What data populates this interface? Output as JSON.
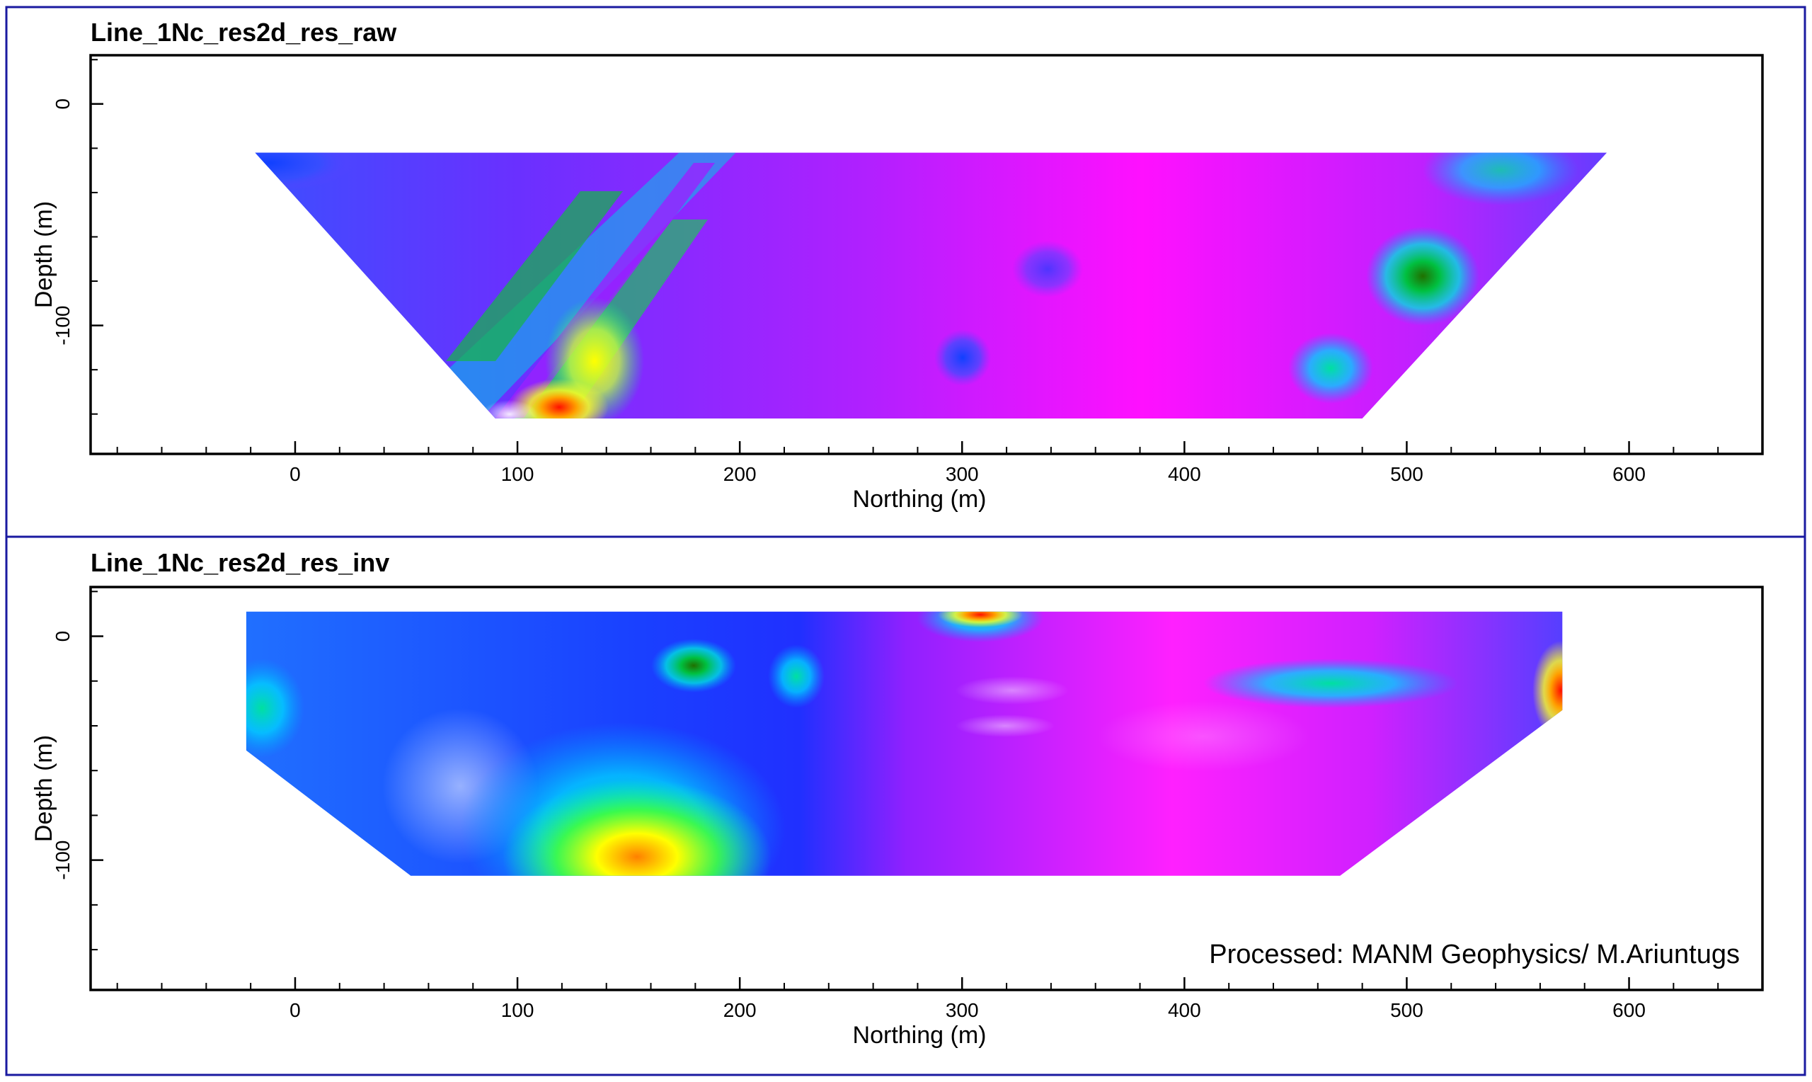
{
  "colors": {
    "frame_border": "#1a1aa0",
    "axis": "#000000",
    "background": "#ffffff",
    "resistivity_scale": [
      "#ff0000",
      "#ff8000",
      "#ffff00",
      "#00c000",
      "#00e0e0",
      "#0090ff",
      "#0000ff",
      "#8000ff",
      "#ff00ff"
    ]
  },
  "chart_data": [
    {
      "type": "heatmap",
      "title": "Line_1Nc_res2d_res_raw",
      "xlabel": "Northing (m)",
      "ylabel": "Depth (m)",
      "xlim": [
        -92,
        660
      ],
      "ylim": [
        -158,
        22
      ],
      "x_ticks": [
        0,
        100,
        200,
        300,
        400,
        500,
        600
      ],
      "x_tick_labels": [
        "0",
        "100",
        "200",
        "300",
        "400",
        "500",
        "600"
      ],
      "y_ticks": [
        0,
        -100
      ],
      "y_tick_labels": [
        "0",
        "-100"
      ],
      "section_outline": [
        [
          -18,
          -22
        ],
        [
          590,
          -22
        ],
        [
          480,
          -142
        ],
        [
          90,
          -142
        ]
      ],
      "dominant_color": "magenta-purple",
      "anomalies": [
        {
          "x": 125,
          "y": -135,
          "level": "high",
          "color": "red"
        },
        {
          "x": 140,
          "y": -110,
          "level": "high",
          "color": "yellow"
        },
        {
          "x": 505,
          "y": -80,
          "level": "medium",
          "color": "green"
        },
        {
          "x": 300,
          "y": -115,
          "level": "low",
          "color": "blue"
        },
        {
          "x": 460,
          "y": -120,
          "level": "low",
          "color": "blue"
        }
      ]
    },
    {
      "type": "heatmap",
      "title": "Line_1Nc_res2d_res_inv",
      "xlabel": "Northing (m)",
      "ylabel": "Depth (m)",
      "xlim": [
        -92,
        660
      ],
      "ylim": [
        -158,
        22
      ],
      "x_ticks": [
        0,
        100,
        200,
        300,
        400,
        500,
        600
      ],
      "x_tick_labels": [
        "0",
        "100",
        "200",
        "300",
        "400",
        "500",
        "600"
      ],
      "y_ticks": [
        0,
        -100
      ],
      "y_tick_labels": [
        "0",
        -100
      ],
      "section_outline": [
        [
          -22,
          11
        ],
        [
          570,
          11
        ],
        [
          570,
          -33
        ],
        [
          470,
          -107
        ],
        [
          52,
          -107
        ],
        [
          -22,
          -51
        ]
      ],
      "dominant_color": "blue-magenta",
      "anomalies": [
        {
          "x": 160,
          "y": -105,
          "level": "high",
          "color": "orange"
        },
        {
          "x": 305,
          "y": 12,
          "level": "high",
          "color": "red"
        },
        {
          "x": 565,
          "y": -23,
          "level": "high",
          "color": "red"
        },
        {
          "x": 180,
          "y": -13,
          "level": "medium",
          "color": "green"
        },
        {
          "x": 230,
          "y": -15,
          "level": "medium",
          "color": "cyan"
        }
      ],
      "annotation": "Processed: MANM Geophysics/ M.Ariuntugs"
    }
  ]
}
